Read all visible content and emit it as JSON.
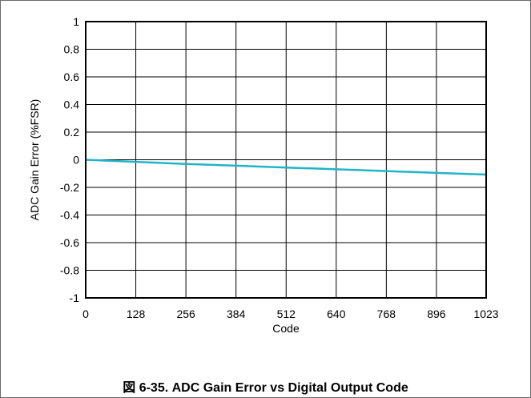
{
  "caption": "図 6-35. ADC Gain Error vs Digital Output Code",
  "chart_data": {
    "type": "line",
    "title": "",
    "xlabel": "Code",
    "ylabel": "ADC Gain Error (%FSR)",
    "x_ticks": [
      0,
      128,
      256,
      384,
      512,
      640,
      768,
      896,
      1023
    ],
    "x_tick_labels": [
      "0",
      "128",
      "256",
      "384",
      "512",
      "640",
      "768",
      "896",
      "1023"
    ],
    "y_ticks": [
      -1,
      -0.8,
      -0.6,
      -0.4,
      -0.2,
      0,
      0.2,
      0.4,
      0.6,
      0.8,
      1
    ],
    "y_tick_labels": [
      "-1",
      "-0.8",
      "-0.6",
      "-0.4",
      "-0.2",
      "0",
      "0.2",
      "0.4",
      "0.6",
      "0.8",
      "1"
    ],
    "xlim": [
      0,
      1023
    ],
    "ylim": [
      -1,
      1
    ],
    "grid": true,
    "series": [
      {
        "color": "#1fb5c8",
        "x": [
          0,
          128,
          256,
          384,
          512,
          640,
          768,
          896,
          1023
        ],
        "y": [
          0,
          -0.015,
          -0.03,
          -0.043,
          -0.056,
          -0.069,
          -0.082,
          -0.095,
          -0.107
        ]
      }
    ]
  }
}
